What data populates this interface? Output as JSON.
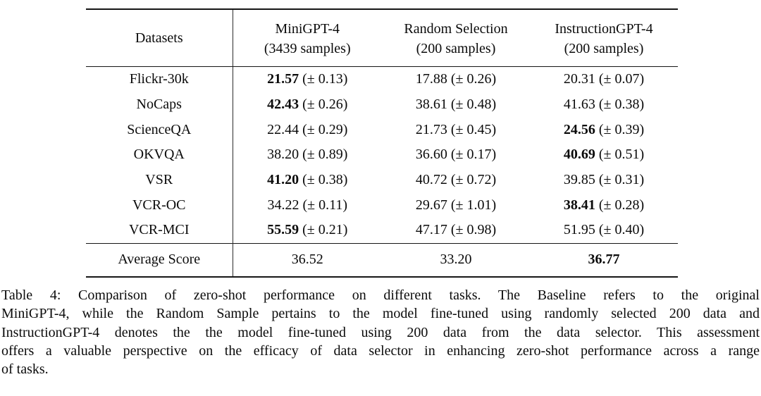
{
  "table": {
    "pm_symbol": "±",
    "col_headers": [
      {
        "name": "Datasets",
        "sub": ""
      },
      {
        "name": "MiniGPT-4",
        "sub": "(3439 samples)"
      },
      {
        "name": "Random Selection",
        "sub": "(200 samples)"
      },
      {
        "name": "InstructionGPT-4",
        "sub": "(200 samples)"
      }
    ],
    "rows": [
      {
        "dataset": "Flickr-30k",
        "cells": [
          {
            "value": "21.57",
            "pm": "0.13",
            "bold": true
          },
          {
            "value": "17.88",
            "pm": "0.26",
            "bold": false
          },
          {
            "value": "20.31",
            "pm": "0.07",
            "bold": false
          }
        ]
      },
      {
        "dataset": "NoCaps",
        "cells": [
          {
            "value": "42.43",
            "pm": "0.26",
            "bold": true
          },
          {
            "value": "38.61",
            "pm": "0.48",
            "bold": false
          },
          {
            "value": "41.63",
            "pm": "0.38",
            "bold": false
          }
        ]
      },
      {
        "dataset": "ScienceQA",
        "cells": [
          {
            "value": "22.44",
            "pm": "0.29",
            "bold": false
          },
          {
            "value": "21.73",
            "pm": "0.45",
            "bold": false
          },
          {
            "value": "24.56",
            "pm": "0.39",
            "bold": true
          }
        ]
      },
      {
        "dataset": "OKVQA",
        "cells": [
          {
            "value": "38.20",
            "pm": "0.89",
            "bold": false
          },
          {
            "value": "36.60",
            "pm": "0.17",
            "bold": false
          },
          {
            "value": "40.69",
            "pm": "0.51",
            "bold": true
          }
        ]
      },
      {
        "dataset": "VSR",
        "cells": [
          {
            "value": "41.20",
            "pm": "0.38",
            "bold": true
          },
          {
            "value": "40.72",
            "pm": "0.72",
            "bold": false
          },
          {
            "value": "39.85",
            "pm": "0.31",
            "bold": false
          }
        ]
      },
      {
        "dataset": "VCR-OC",
        "cells": [
          {
            "value": "34.22",
            "pm": "0.11",
            "bold": false
          },
          {
            "value": "29.67",
            "pm": "1.01",
            "bold": false
          },
          {
            "value": "38.41",
            "pm": "0.28",
            "bold": true
          }
        ]
      },
      {
        "dataset": "VCR-MCI",
        "cells": [
          {
            "value": "55.59",
            "pm": "0.21",
            "bold": true
          },
          {
            "value": "47.17",
            "pm": "0.98",
            "bold": false
          },
          {
            "value": "51.95",
            "pm": "0.40",
            "bold": false
          }
        ]
      }
    ],
    "footer": {
      "label": "Average Score",
      "cells": [
        {
          "value": "36.52",
          "bold": false
        },
        {
          "value": "33.20",
          "bold": false
        },
        {
          "value": "36.77",
          "bold": true
        }
      ]
    }
  },
  "caption": {
    "lines": [
      "Table 4: Comparison of zero-shot performance on different tasks. The Baseline refers to the original",
      "MiniGPT-4, while the Random Sample pertains to the model fine-tuned using randomly selected 200 data and",
      "InstructionGPT-4 denotes the the model fine-tuned using 200 data from the data selector. This assessment",
      "offers a valuable perspective on the efficacy of data selector in enhancing zero-shot performance across a range",
      "of tasks."
    ],
    "full_text": "Table 4: Comparison of zero-shot performance on different tasks. The Baseline refers to the original MiniGPT-4, while the Random Sample pertains to the model fine-tuned using randomly selected 200 data and InstructionGPT-4 denotes the the model fine-tuned using 200 data from the data selector. This assessment offers a valuable perspective on the efficacy of data selector in enhancing zero-shot performance across a range of tasks."
  }
}
